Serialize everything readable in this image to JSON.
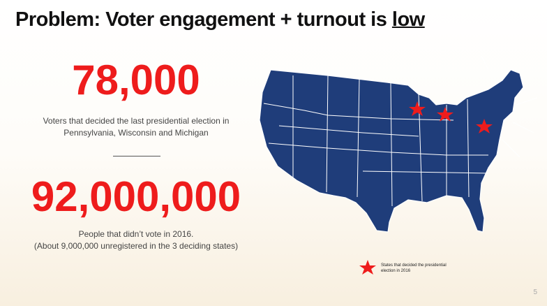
{
  "title": {
    "text": "Problem: Voter engagement + turnout is",
    "emphasis": "low"
  },
  "stats": [
    {
      "number": "78,000",
      "caption_lines": [
        "Voters that decided the last presidential election in",
        "Pennsylvania, Wisconsin and Michigan"
      ]
    },
    {
      "number": "92,000,000",
      "caption_lines": [
        "People that didn’t vote in 2016.",
        "(About 9,000,000 unregistered in the 3 deciding states)"
      ]
    }
  ],
  "legend": {
    "lines": [
      "States that decided the presidential",
      "election in 2016"
    ]
  },
  "page_number": "5"
}
